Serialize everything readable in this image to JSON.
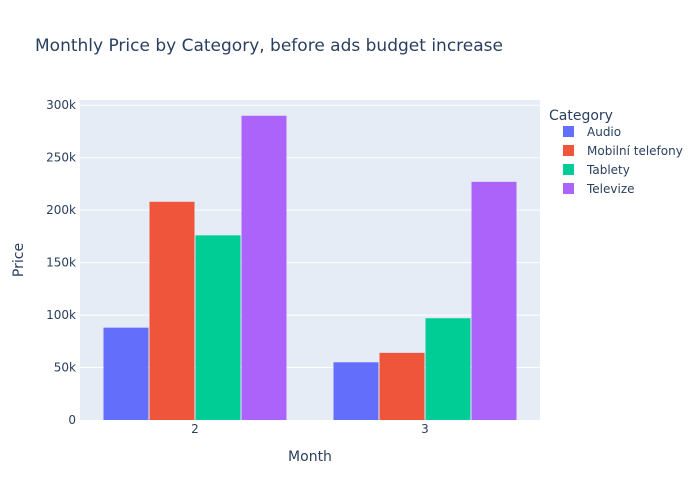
{
  "chart_data": {
    "type": "bar",
    "title": "Monthly Price by Category, before ads budget increase",
    "xlabel": "Month",
    "ylabel": "Price",
    "categories": [
      "2",
      "3"
    ],
    "ylim": [
      0,
      305000
    ],
    "yticks": [
      0,
      50000,
      100000,
      150000,
      200000,
      250000,
      300000
    ],
    "ytick_labels": [
      "0",
      "50k",
      "100k",
      "150k",
      "200k",
      "250k",
      "300k"
    ],
    "grid": true,
    "legend_title": "Category",
    "legend_position": "top-right",
    "series": [
      {
        "name": "Audio",
        "color": "#636efa",
        "values": [
          88000,
          55000
        ]
      },
      {
        "name": "Mobilní telefony",
        "color": "#ef553b",
        "values": [
          208000,
          64000
        ]
      },
      {
        "name": "Tablety",
        "color": "#00cc96",
        "values": [
          176000,
          97000
        ]
      },
      {
        "name": "Televize",
        "color": "#ab63fa",
        "values": [
          290000,
          227000
        ]
      }
    ]
  },
  "colors": {
    "plot_background": "#e5ecf6",
    "gridline": "#ffffff",
    "text": "#2a3f5f"
  }
}
